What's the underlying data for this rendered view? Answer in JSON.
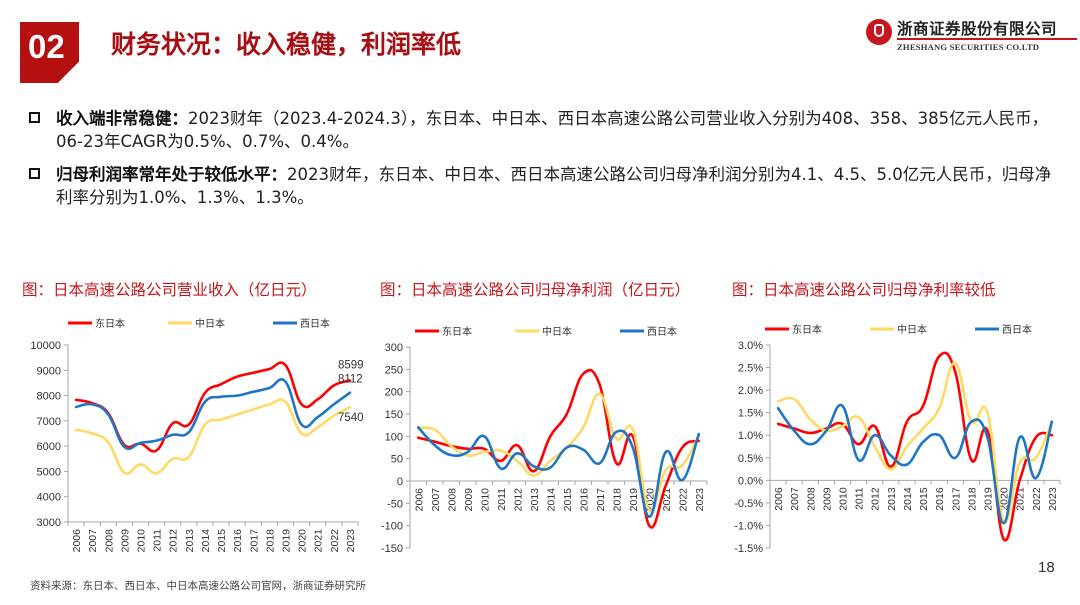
{
  "header": {
    "section_number": "02",
    "title": "财务状况：收入稳健，利润率低",
    "logo_cn": "浙商证券股份有限公司",
    "logo_en": "ZHESHANG SECURITIES CO.LTD"
  },
  "bullets": [
    {
      "bold": "收入端非常稳健：",
      "text": "2023财年（2023.4-2024.3），东日本、中日本、西日本高速公路公司营业收入分别为408、358、385亿元人民币，06-23年CAGR为0.5%、0.7%、0.4%。"
    },
    {
      "bold": "归母利润率常年处于较低水平：",
      "text": "2023财年，东日本、中日本、西日本高速公路公司归母净利润分别为4.1、4.5、5.0亿元人民币，归母净利率分别为1.0%、1.3%、1.3%。"
    }
  ],
  "colors": {
    "brand": "#b50f0f",
    "east": "#ff0000",
    "central": "#ffd966",
    "west": "#1f77c4"
  },
  "chart_data": [
    {
      "type": "line",
      "title": "图：日本高速公路公司营业收入（亿日元）",
      "xlabel": "",
      "ylabel": "",
      "categories": [
        "2006",
        "2007",
        "2008",
        "2009",
        "2010",
        "2011",
        "2012",
        "2013",
        "2014",
        "2015",
        "2016",
        "2017",
        "2018",
        "2019",
        "2020",
        "2021",
        "2022",
        "2023"
      ],
      "ylim": [
        3000,
        10000
      ],
      "yticks": [
        3000,
        4000,
        5000,
        6000,
        7000,
        8000,
        9000,
        10000
      ],
      "ytick_labels": [
        "3000",
        "4000",
        "5000",
        "6000",
        "7000",
        "8000",
        "9000",
        "10000"
      ],
      "grid": false,
      "legend": "top",
      "series": [
        {
          "name": "东日本",
          "color": "#ff0000",
          "values": [
            7830,
            7700,
            7300,
            6050,
            6100,
            5830,
            6900,
            6850,
            8100,
            8450,
            8750,
            8900,
            9050,
            9200,
            7650,
            7850,
            8400,
            8599
          ]
        },
        {
          "name": "中日本",
          "color": "#ffd966",
          "values": [
            6650,
            6500,
            6150,
            4950,
            5280,
            4930,
            5500,
            5570,
            6850,
            7050,
            7250,
            7450,
            7650,
            7750,
            6500,
            6750,
            7200,
            7540
          ]
        },
        {
          "name": "西日本",
          "color": "#1f77c4",
          "values": [
            7550,
            7650,
            7250,
            5970,
            6130,
            6220,
            6450,
            6550,
            7750,
            7950,
            8000,
            8150,
            8300,
            8550,
            6850,
            7150,
            7650,
            8112
          ]
        }
      ],
      "annotations": [
        {
          "text": "8599",
          "series": "东日本",
          "x": "2023"
        },
        {
          "text": "8112",
          "series": "西日本",
          "x": "2023"
        },
        {
          "text": "7540",
          "series": "中日本",
          "x": "2023"
        }
      ]
    },
    {
      "type": "line",
      "title": "图：日本高速公路公司归母净利润（亿日元）",
      "xlabel": "",
      "ylabel": "",
      "categories": [
        "2006",
        "2007",
        "2008",
        "2009",
        "2010",
        "2011",
        "2012",
        "2013",
        "2014",
        "2015",
        "2016",
        "2017",
        "2018",
        "2019",
        "2020",
        "2021",
        "2022",
        "2023"
      ],
      "ylim": [
        -150,
        300
      ],
      "yticks": [
        -150,
        -100,
        -50,
        0,
        50,
        100,
        150,
        200,
        250,
        300
      ],
      "ytick_labels": [
        "-150",
        "-100",
        "-50",
        "0",
        "50",
        "100",
        "150",
        "200",
        "250",
        "300"
      ],
      "grid": false,
      "legend": "top",
      "series": [
        {
          "name": "东日本",
          "color": "#ff0000",
          "values": [
            97,
            88,
            78,
            72,
            72,
            45,
            80,
            22,
            100,
            150,
            240,
            215,
            40,
            100,
            -100,
            -10,
            75,
            90
          ]
        },
        {
          "name": "中日本",
          "color": "#ffd966",
          "values": [
            118,
            115,
            78,
            57,
            65,
            68,
            45,
            12,
            45,
            75,
            120,
            195,
            95,
            115,
            -65,
            25,
            35,
            100
          ]
        },
        {
          "name": "西日本",
          "color": "#1f77c4",
          "values": [
            120,
            80,
            58,
            65,
            100,
            28,
            62,
            33,
            30,
            75,
            70,
            40,
            110,
            75,
            -80,
            65,
            2,
            105
          ]
        }
      ]
    },
    {
      "type": "line",
      "title": "图：日本高速公路公司归母净利率较低",
      "xlabel": "",
      "ylabel": "",
      "categories": [
        "2006",
        "2007",
        "2008",
        "2009",
        "2010",
        "2011",
        "2012",
        "2013",
        "2014",
        "2015",
        "2016",
        "2017",
        "2018",
        "2019",
        "2020",
        "2021",
        "2022",
        "2023"
      ],
      "ylim": [
        -1.5,
        3.0
      ],
      "yticks": [
        -1.5,
        -1.0,
        -0.5,
        0,
        0.5,
        1.0,
        1.5,
        2.0,
        2.5,
        3.0
      ],
      "ytick_labels": [
        "-1.5%",
        "-1.0%",
        "-0.5%",
        "0.0%",
        "0.5%",
        "1.0%",
        "1.5%",
        "2.0%",
        "2.5%",
        "3.0%"
      ],
      "grid": false,
      "legend": "top",
      "series": [
        {
          "name": "东日本",
          "color": "#ff0000",
          "values": [
            1.25,
            1.15,
            1.05,
            1.15,
            1.25,
            0.8,
            1.2,
            0.3,
            1.3,
            1.65,
            2.75,
            2.4,
            0.45,
            1.1,
            -1.3,
            0.0,
            0.95,
            1.0
          ]
        },
        {
          "name": "中日本",
          "color": "#ffd966",
          "values": [
            1.75,
            1.8,
            1.35,
            1.1,
            1.2,
            1.4,
            0.75,
            0.25,
            0.75,
            1.15,
            1.6,
            2.6,
            1.3,
            1.5,
            -0.9,
            0.4,
            0.5,
            1.3
          ]
        },
        {
          "name": "西日本",
          "color": "#1f77c4",
          "values": [
            1.6,
            1.1,
            0.8,
            1.1,
            1.65,
            0.45,
            1.0,
            0.55,
            0.35,
            0.85,
            1.0,
            0.5,
            1.3,
            0.95,
            -0.95,
            0.95,
            0.05,
            1.3
          ]
        }
      ]
    }
  ],
  "footer": {
    "source": "资料来源：东日本、西日本、中日本高速公路公司官网，浙商证券研究所",
    "page_number": "18"
  }
}
